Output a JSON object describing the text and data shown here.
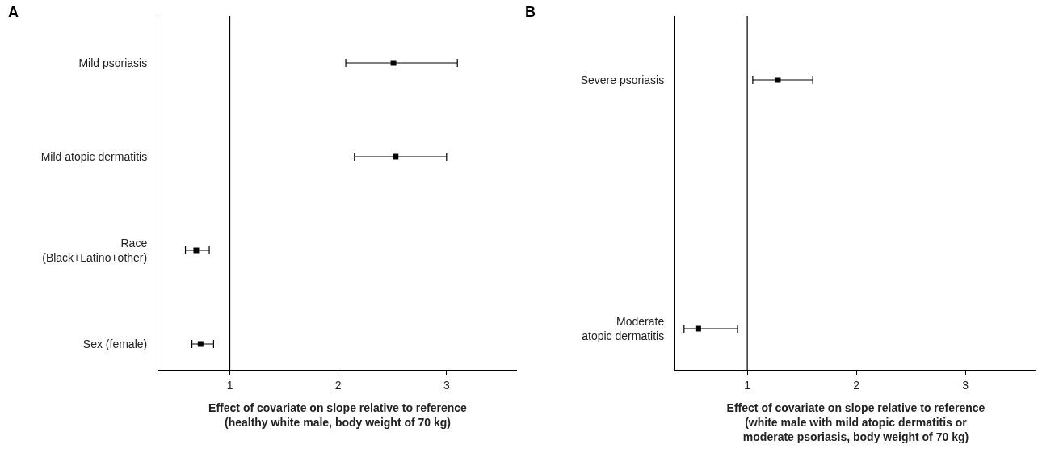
{
  "chart_data": [
    {
      "type": "scatter",
      "title": "A",
      "orientation": "horizontal",
      "categories": [
        "Mild psoriasis",
        "Mild atopic dermatitis",
        "Race\n(Black+Latino+other)",
        "Sex (female)"
      ],
      "series": [
        {
          "color": "#000000",
          "values": [
            2.51,
            2.53,
            0.69,
            0.73
          ],
          "errors": [
            [
              2.07,
              3.1
            ],
            [
              2.15,
              3.0
            ],
            [
              0.59,
              0.81
            ],
            [
              0.65,
              0.85
            ]
          ]
        }
      ],
      "xlabel": "Effect of covariate on slope relative to reference\n(healthy white male, body weight of 70 kg)",
      "xlim": [
        0.34,
        3.65
      ],
      "xticks": [
        1,
        2,
        3
      ],
      "ref_lines": [
        {
          "axis": "x",
          "value": 1,
          "color": "#000000"
        }
      ],
      "grid": false,
      "marker": "square"
    },
    {
      "type": "scatter",
      "title": "B",
      "orientation": "horizontal",
      "categories": [
        "Severe psoriasis",
        "Moderate\natopic dermatitis"
      ],
      "series": [
        {
          "color": "#000000",
          "values": [
            1.28,
            0.55
          ],
          "errors": [
            [
              1.05,
              1.6
            ],
            [
              0.42,
              0.91
            ]
          ]
        }
      ],
      "xlabel": "Effect of covariate on slope relative to reference\n(white male with mild atopic dermatitis or\nmoderate psoriasis, body weight of 70 kg)",
      "xlim": [
        0.34,
        3.65
      ],
      "xticks": [
        1,
        2,
        3
      ],
      "ref_lines": [
        {
          "axis": "x",
          "value": 1,
          "color": "#000000"
        }
      ],
      "grid": false,
      "marker": "square"
    }
  ]
}
